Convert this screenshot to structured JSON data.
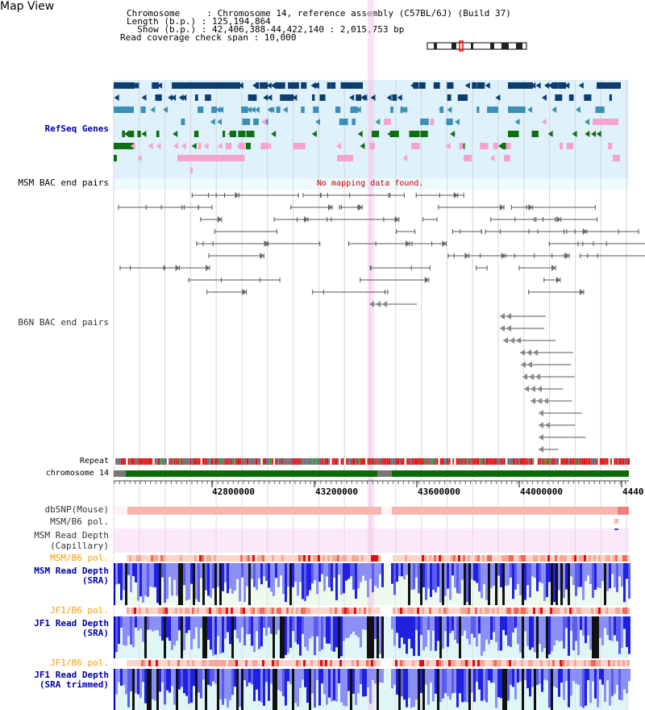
{
  "page": {
    "title": "Map View"
  },
  "header": {
    "chromosome": "Chromosome     : Chromosome 14, reference assembly (C57BL/6J) (Build 37)",
    "length": "Length (b.p.) : 125,194,864",
    "show": "  Show (b.p.) : 42,406,388-44,422,140 : 2,015,753 bp",
    "read_coverage": "Read coverage check span : 10,000"
  },
  "tracks": {
    "refseq": "RefSeq Genes",
    "msm_bac": "MSM BAC end pairs",
    "msm_bac_msg": "No mapping data found.",
    "b6n_bac": "B6N BAC end pairs",
    "repeat": "Repeat",
    "chromosome": "chromosome 14",
    "dbsnp": "dbSNP(Mouse)",
    "msm_b6_pol": "MSM/B6 pol.",
    "msm_read_depth_cap_1": "MSM Read Depth",
    "msm_read_depth_cap_2": "(Capillary)",
    "msm_b6_pol_2": "MSM/B6 pol.",
    "msm_read_depth_sra_1": "MSM Read Depth",
    "msm_read_depth_sra_2": "(SRA)",
    "jf1_b6_pol": "JF1/B6 pol.",
    "jf1_read_depth_1": "JF1 Read Depth",
    "jf1_read_depth_2": "(SRA)",
    "jf1_b6_pol_2": "JF1/B6 pol.",
    "jf1_trim_1": "JF1 Read Depth",
    "jf1_trim_2": "(SRA trimmed)"
  },
  "scale": {
    "ticks": [
      "42800000",
      "43200000",
      "43600000",
      "44000000",
      "4440"
    ]
  },
  "colors": {
    "refseq_bg": "#dff1fb",
    "bac_bg": "#eefafc",
    "highlight": "#f6c8ec",
    "gene_navy": "#0d3d6e",
    "gene_teal": "#3b8eb5",
    "gene_green": "#0f6e0f",
    "gene_pink": "#f7a3cf",
    "read_blue": "#2020e0",
    "read_light": "#8a8ef5",
    "chrom_green": "#0b6b0b"
  }
}
